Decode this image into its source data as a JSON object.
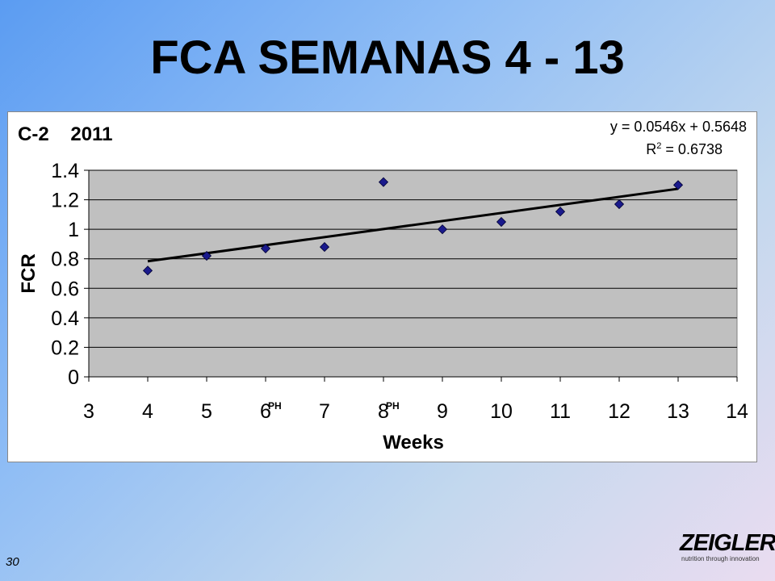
{
  "slide": {
    "title": "FCA SEMANAS 4 - 13",
    "number": "30",
    "logo": {
      "name": "ZEIGLER",
      "tagline": "nutrition through innovation"
    }
  },
  "chart_data": {
    "type": "scatter",
    "title": "C-2    2011",
    "xlabel": "Weeks",
    "ylabel": "FCR",
    "xlim": [
      3,
      14
    ],
    "ylim": [
      0,
      1.4
    ],
    "x_ticks": [
      3,
      4,
      5,
      6,
      7,
      8,
      9,
      10,
      11,
      12,
      13,
      14
    ],
    "y_ticks": [
      0,
      0.2,
      0.4,
      0.6,
      0.8,
      1,
      1.2,
      1.4
    ],
    "y_tick_labels": [
      "0",
      "0.2",
      "0.4",
      "0.6",
      "0.8",
      "1",
      "1.2",
      "1.4"
    ],
    "grid": "horizontal",
    "plot_background": "#c0c0c0",
    "marker_color": "#1a1a8c",
    "series": [
      {
        "x": [
          4,
          5,
          6,
          7,
          8,
          9,
          10,
          11,
          12,
          13
        ],
        "y": [
          0.72,
          0.82,
          0.87,
          0.88,
          1.32,
          1.0,
          1.05,
          1.12,
          1.17,
          1.3
        ]
      }
    ],
    "trendline": {
      "equation": "y = 0.0546x + 0.5648",
      "r2_prefix": "R",
      "r2_exp": "2",
      "r2_value": " = 0.6738",
      "slope": 0.0546,
      "intercept": 0.5648,
      "x_from": 4,
      "x_to": 13
    },
    "annotations": [
      {
        "text": "PH",
        "x": 6
      },
      {
        "text": "PH",
        "x": 8
      }
    ]
  }
}
